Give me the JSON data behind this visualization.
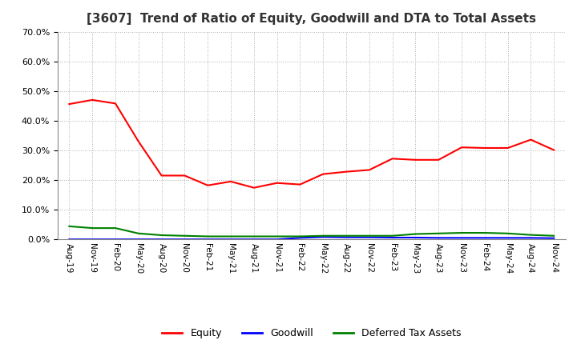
{
  "title": "[3607]  Trend of Ratio of Equity, Goodwill and DTA to Total Assets",
  "x_labels": [
    "Aug-19",
    "Nov-19",
    "Feb-20",
    "May-20",
    "Aug-20",
    "Nov-20",
    "Feb-21",
    "May-21",
    "Aug-21",
    "Nov-21",
    "Feb-22",
    "May-22",
    "Aug-22",
    "Nov-22",
    "Feb-23",
    "May-23",
    "Aug-23",
    "Nov-23",
    "Feb-24",
    "May-24",
    "Aug-24",
    "Nov-24"
  ],
  "equity": [
    0.456,
    0.47,
    0.458,
    0.33,
    0.215,
    0.215,
    0.182,
    0.195,
    0.174,
    0.19,
    0.185,
    0.22,
    0.228,
    0.234,
    0.272,
    0.268,
    0.268,
    0.31,
    0.308,
    0.308,
    0.336,
    0.301
  ],
  "goodwill": [
    0.0,
    0.0,
    0.0,
    0.0,
    0.0,
    0.0,
    0.0,
    0.0,
    0.0,
    0.0,
    0.005,
    0.008,
    0.007,
    0.007,
    0.006,
    0.006,
    0.005,
    0.005,
    0.005,
    0.005,
    0.005,
    0.004
  ],
  "dta": [
    0.044,
    0.038,
    0.038,
    0.02,
    0.014,
    0.012,
    0.01,
    0.01,
    0.01,
    0.01,
    0.01,
    0.012,
    0.012,
    0.012,
    0.012,
    0.018,
    0.02,
    0.022,
    0.022,
    0.02,
    0.015,
    0.012
  ],
  "equity_color": "#ff0000",
  "goodwill_color": "#0000ff",
  "dta_color": "#008000",
  "ylim": [
    0.0,
    0.7
  ],
  "yticks": [
    0.0,
    0.1,
    0.2,
    0.3,
    0.4,
    0.5,
    0.6,
    0.7
  ],
  "background_color": "#ffffff",
  "grid_color": "#b0b0b0",
  "title_fontsize": 11,
  "legend_labels": [
    "Equity",
    "Goodwill",
    "Deferred Tax Assets"
  ]
}
